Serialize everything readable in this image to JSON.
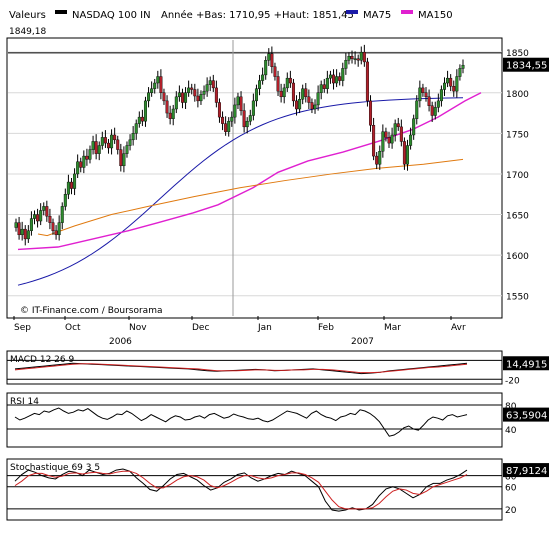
{
  "header": {
    "valeurs_label": "Valeurs",
    "instrument": "NASDAQ 100 IN",
    "range_text": "Année +Bas: 1710,95 +Haut: 1851,45",
    "ma75_label": "MA75",
    "ma150_label": "MA150",
    "high_value": "1849,18"
  },
  "colors": {
    "up": "#2e8b2e",
    "down": "#b0202a",
    "ma75": "#1a1aa8",
    "ma150": "#e020d0",
    "orange": "#e07a10",
    "rsi": "#000000",
    "signal": "#cc2020"
  },
  "watermark": "© IT-Finance.com / Boursorama",
  "chart_data": [
    {
      "type": "candlestick",
      "title": "NASDAQ 100 IN",
      "x_months": [
        "Sep",
        "Oct",
        "Nov",
        "Dec",
        "Jan",
        "Feb",
        "Mar",
        "Avr"
      ],
      "x_years": [
        "2006",
        "2007"
      ],
      "ylim": [
        1525,
        1865
      ],
      "y_ticks": [
        1550,
        1600,
        1650,
        1700,
        1750,
        1800,
        1850
      ],
      "last_value": "1834,55",
      "reference_line": 1849.18,
      "closes": [
        1640,
        1625,
        1632,
        1620,
        1630,
        1645,
        1650,
        1642,
        1655,
        1660,
        1648,
        1640,
        1630,
        1625,
        1640,
        1660,
        1675,
        1690,
        1682,
        1700,
        1715,
        1708,
        1722,
        1718,
        1730,
        1740,
        1725,
        1735,
        1745,
        1738,
        1732,
        1748,
        1742,
        1730,
        1710,
        1725,
        1735,
        1742,
        1750,
        1762,
        1770,
        1765,
        1790,
        1800,
        1805,
        1812,
        1820,
        1800,
        1790,
        1775,
        1768,
        1780,
        1795,
        1800,
        1788,
        1800,
        1806,
        1804,
        1796,
        1790,
        1798,
        1802,
        1810,
        1815,
        1806,
        1788,
        1770,
        1762,
        1752,
        1765,
        1770,
        1785,
        1795,
        1778,
        1758,
        1765,
        1772,
        1790,
        1805,
        1815,
        1822,
        1840,
        1848,
        1832,
        1820,
        1802,
        1795,
        1806,
        1818,
        1812,
        1790,
        1780,
        1792,
        1805,
        1795,
        1788,
        1780,
        1785,
        1800,
        1810,
        1805,
        1818,
        1822,
        1812,
        1820,
        1815,
        1830,
        1840,
        1845,
        1842,
        1842,
        1840,
        1850,
        1838,
        1790,
        1760,
        1722,
        1712,
        1728,
        1752,
        1745,
        1738,
        1748,
        1762,
        1758,
        1740,
        1712,
        1735,
        1748,
        1768,
        1790,
        1806,
        1800,
        1795,
        1784,
        1772,
        1782,
        1790,
        1804,
        1812,
        1818,
        1808,
        1802,
        1820,
        1830,
        1834
      ],
      "ma75_start": 1545,
      "ma75_end": 1790,
      "ma150": [
        [
          0,
          1607
        ],
        [
          40,
          1610
        ],
        [
          75,
          1620
        ],
        [
          110,
          1630
        ],
        [
          140,
          1640
        ],
        [
          175,
          1652
        ],
        [
          200,
          1662
        ],
        [
          235,
          1683
        ],
        [
          260,
          1702
        ],
        [
          290,
          1716
        ],
        [
          325,
          1727
        ],
        [
          360,
          1740
        ],
        [
          395,
          1755
        ],
        [
          420,
          1770
        ],
        [
          447,
          1790
        ],
        [
          463,
          1800
        ]
      ],
      "orange_line": [
        [
          0,
          1626
        ],
        [
          10,
          1624
        ],
        [
          40,
          1636
        ],
        [
          80,
          1650
        ],
        [
          120,
          1660
        ],
        [
          170,
          1672
        ],
        [
          220,
          1683
        ],
        [
          270,
          1692
        ],
        [
          320,
          1700
        ],
        [
          370,
          1707
        ],
        [
          420,
          1712
        ],
        [
          463,
          1718
        ]
      ],
      "vertical_line_date": "Jan"
    },
    {
      "type": "line",
      "title": "MACD 12 26 9",
      "value": "14,4915",
      "ylim": [
        -30,
        40
      ],
      "y_ticks": [
        20,
        -20
      ],
      "series": [
        {
          "values": [
            2,
            4,
            6,
            8,
            10,
            12,
            14,
            13,
            12,
            11,
            10,
            9,
            8,
            7,
            6,
            5,
            4,
            3,
            2,
            0,
            -2,
            -3,
            -2,
            -1,
            0,
            1,
            0,
            -2,
            -1,
            0,
            1,
            2,
            0,
            -2,
            -4,
            -6,
            -8,
            -7,
            -5,
            -2,
            0,
            2,
            4,
            6,
            8,
            10,
            12,
            14
          ]
        },
        {
          "values": [
            0,
            2,
            4,
            6,
            8,
            10,
            12,
            13,
            13,
            12,
            11,
            10,
            9,
            8,
            7,
            6,
            5,
            4,
            3,
            2,
            0,
            -2,
            -2,
            -2,
            -1,
            0,
            0,
            -1,
            -1,
            0,
            0,
            1,
            1,
            0,
            -2,
            -4,
            -6,
            -6,
            -5,
            -3,
            -1,
            1,
            3,
            5,
            6,
            8,
            10,
            12
          ]
        }
      ]
    },
    {
      "type": "line",
      "title": "RSI 14",
      "value": "63,5904",
      "ylim": [
        10,
        100
      ],
      "y_ticks": [
        80,
        40
      ],
      "series": [
        {
          "values": [
            60,
            55,
            58,
            62,
            66,
            64,
            70,
            68,
            72,
            75,
            70,
            66,
            68,
            72,
            70,
            74,
            68,
            62,
            58,
            56,
            60,
            65,
            64,
            70,
            66,
            60,
            54,
            58,
            64,
            60,
            56,
            52,
            58,
            62,
            60,
            55,
            56,
            60,
            62,
            58,
            64,
            66,
            62,
            58,
            60,
            65,
            62,
            60,
            57,
            56,
            58,
            54,
            52,
            55,
            60,
            65,
            70,
            68,
            66,
            62,
            58,
            66,
            70,
            64,
            60,
            58,
            54,
            60,
            62,
            66,
            64,
            72,
            70,
            66,
            60,
            52,
            40,
            28,
            30,
            35,
            42,
            45,
            40,
            38,
            46,
            55,
            60,
            58,
            55,
            62,
            64,
            60,
            62,
            64
          ]
        }
      ]
    },
    {
      "type": "line",
      "title": "Stochastique 69 3 5",
      "value": "87,9124",
      "ylim": [
        0,
        110
      ],
      "y_ticks": [
        80,
        60,
        20
      ],
      "series": [
        {
          "values": [
            70,
            82,
            90,
            86,
            80,
            76,
            74,
            82,
            88,
            86,
            80,
            90,
            86,
            82,
            84,
            90,
            92,
            88,
            76,
            66,
            55,
            52,
            62,
            74,
            82,
            84,
            78,
            72,
            62,
            54,
            58,
            68,
            74,
            82,
            85,
            76,
            70,
            74,
            80,
            84,
            82,
            88,
            84,
            80,
            70,
            60,
            34,
            18,
            16,
            18,
            22,
            18,
            20,
            28,
            44,
            56,
            60,
            56,
            48,
            40,
            46,
            60,
            66,
            66,
            72,
            76,
            82,
            90
          ]
        },
        {
          "values": [
            62,
            70,
            80,
            84,
            84,
            80,
            77,
            79,
            84,
            85,
            83,
            85,
            86,
            84,
            83,
            86,
            88,
            88,
            84,
            76,
            66,
            58,
            58,
            64,
            72,
            78,
            80,
            78,
            72,
            62,
            58,
            62,
            68,
            75,
            80,
            80,
            76,
            74,
            76,
            80,
            82,
            85,
            85,
            82,
            76,
            68,
            52,
            36,
            24,
            20,
            20,
            20,
            20,
            22,
            30,
            42,
            52,
            56,
            54,
            48,
            46,
            52,
            60,
            64,
            68,
            72,
            76,
            82
          ]
        }
      ]
    }
  ]
}
